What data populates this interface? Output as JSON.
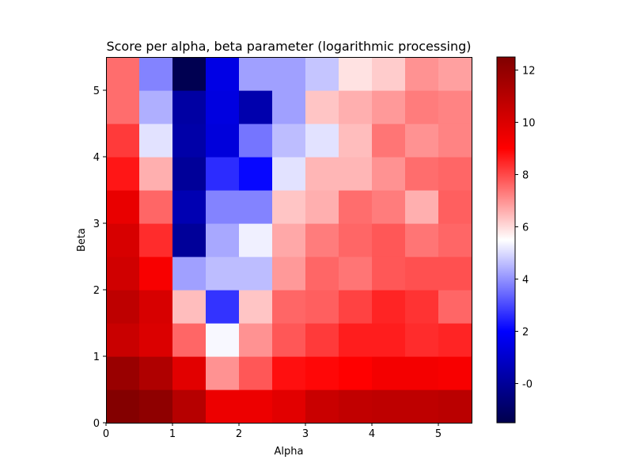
{
  "chart_data": {
    "type": "heatmap",
    "title": "Score per alpha, beta parameter (logarithmic processing)",
    "xlabel": "Alpha",
    "ylabel": "Beta",
    "xlim": [
      0,
      5.5
    ],
    "ylim": [
      0,
      5.5
    ],
    "x_ticks": [
      "0",
      "1",
      "2",
      "3",
      "4",
      "5"
    ],
    "y_ticks": [
      "0",
      "1",
      "2",
      "3",
      "4",
      "5"
    ],
    "cell_size": 0.5,
    "colormap": "seismic",
    "vmin": -1.5,
    "vmax": 12.5,
    "colorbar_ticks": [
      "-0",
      "2",
      "4",
      "6",
      "8",
      "10",
      "12"
    ],
    "grid": false,
    "values": [
      [
        12.4,
        12.1,
        11.0,
        9.5,
        9.5,
        9.8,
        10.5,
        10.7,
        10.8,
        10.8,
        10.9
      ],
      [
        11.8,
        11.2,
        9.8,
        7.0,
        7.8,
        8.8,
        8.9,
        9.0,
        9.3,
        9.3,
        9.2
      ],
      [
        10.5,
        10.0,
        7.6,
        5.4,
        7.0,
        7.8,
        8.2,
        8.6,
        8.6,
        8.4,
        8.5
      ],
      [
        10.8,
        10.1,
        6.4,
        2.7,
        6.3,
        7.6,
        7.7,
        8.1,
        8.5,
        8.3,
        7.6
      ],
      [
        10.3,
        9.2,
        4.2,
        4.6,
        4.6,
        6.9,
        7.6,
        7.4,
        7.8,
        7.9,
        7.9
      ],
      [
        10.1,
        8.4,
        0.0,
        4.3,
        5.3,
        6.7,
        7.3,
        7.6,
        7.8,
        7.4,
        7.6
      ],
      [
        9.6,
        7.6,
        0.5,
        3.8,
        3.8,
        6.3,
        6.6,
        7.5,
        7.3,
        6.6,
        7.7
      ],
      [
        8.7,
        6.6,
        0.0,
        2.6,
        2.1,
        5.1,
        6.5,
        6.5,
        7.0,
        7.5,
        7.6
      ],
      [
        8.2,
        5.1,
        0.3,
        1.3,
        3.6,
        4.6,
        5.1,
        6.4,
        7.4,
        7.0,
        7.2
      ],
      [
        7.5,
        4.4,
        0.2,
        1.4,
        0.4,
        4.2,
        6.3,
        6.6,
        6.9,
        7.3,
        7.2
      ],
      [
        7.5,
        3.8,
        -1.4,
        1.5,
        4.2,
        4.2,
        4.7,
        5.9,
        6.2,
        7.0,
        6.8
      ]
    ]
  }
}
